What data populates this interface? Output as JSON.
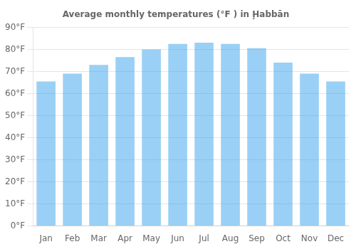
{
  "chart_data": {
    "type": "bar",
    "title": "Average monthly temperatures (°F ) in Ḩabbān",
    "categories": [
      "Jan",
      "Feb",
      "Mar",
      "Apr",
      "May",
      "Jun",
      "Jul",
      "Aug",
      "Sep",
      "Oct",
      "Nov",
      "Dec"
    ],
    "values": [
      65.5,
      69.0,
      73.0,
      76.5,
      80.0,
      82.5,
      83.0,
      82.5,
      80.5,
      74.0,
      69.0,
      65.5
    ],
    "ylim": [
      0,
      90
    ],
    "yticks": [
      {
        "value": 0,
        "label": "0°F"
      },
      {
        "value": 10,
        "label": "10°F"
      },
      {
        "value": 20,
        "label": "20°F"
      },
      {
        "value": 30,
        "label": "30°F"
      },
      {
        "value": 40,
        "label": "40°F"
      },
      {
        "value": 50,
        "label": "50°F"
      },
      {
        "value": 60,
        "label": "60°F"
      },
      {
        "value": 70,
        "label": "70°F"
      },
      {
        "value": 80,
        "label": "80°F"
      },
      {
        "value": 90,
        "label": "90°F"
      }
    ],
    "grid": true
  }
}
